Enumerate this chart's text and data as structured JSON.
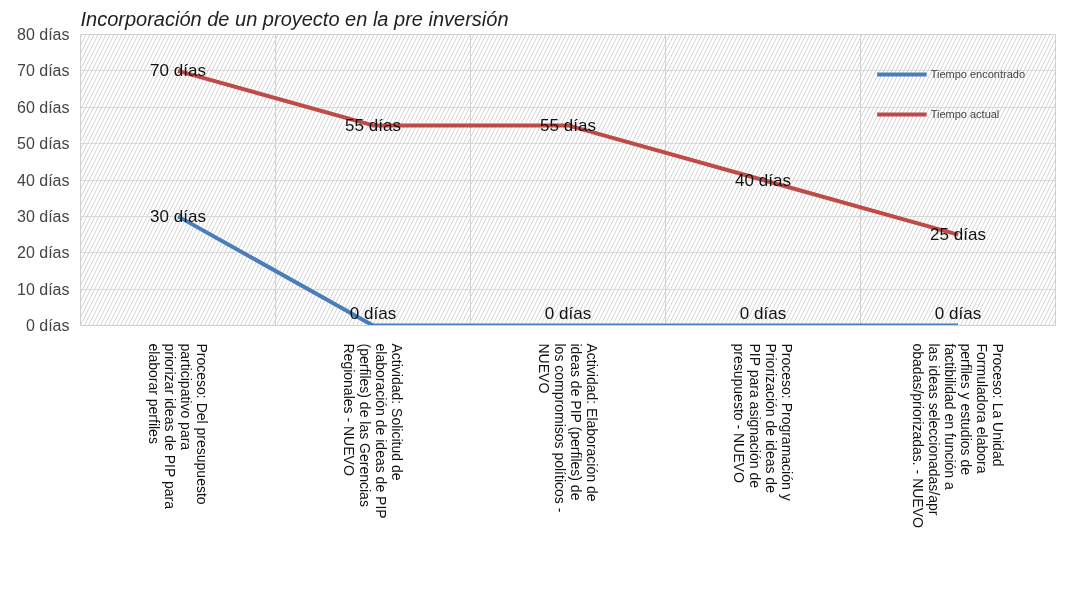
{
  "chart_data": {
    "type": "line",
    "title": "Incorporación de un proyecto en la pre inversión",
    "categories": [
      "Proceso: Del presupuesto participativo para priorizar ideas de PIP para elaborar perfiles",
      "Actividad:  Solicitud de elaboración de ideas de PIP (perfiles) de las Gerencias Regionales - NUEVO",
      "Actividad: Elaboración de ideas de PIP (perfiles) de los compromisos políticos - NUEVO",
      "Proceso: Programación y Priorización de ideas de PIP para asignación de presupuesto - NUEVO",
      "Proceso: La Unidad Formuladora elabora perfiles y estudios de factibilidad en función a las ideas seleccionadas/aprobadas/priorizadas. - NUEVO"
    ],
    "series": [
      {
        "name": "Tiempo encontrado",
        "color": "#4a7ebb",
        "values": [
          30,
          0,
          0,
          0,
          0
        ],
        "value_labels": [
          "30 días",
          "0 días",
          "0 días",
          "0 días",
          "0 días"
        ]
      },
      {
        "name": "Tiempo actual",
        "color": "#be4b48",
        "values": [
          70,
          55,
          55,
          40,
          25
        ],
        "value_labels": [
          "70 días",
          "55 días",
          "55 días",
          "40 días",
          "25 días"
        ]
      }
    ],
    "ylim": [
      0,
      80
    ],
    "yticks": [
      {
        "value": 0,
        "label": "0 días"
      },
      {
        "value": 10,
        "label": "10 días"
      },
      {
        "value": 20,
        "label": "20 días"
      },
      {
        "value": 30,
        "label": "30 días"
      },
      {
        "value": 40,
        "label": "40 días"
      },
      {
        "value": 50,
        "label": "50 días"
      },
      {
        "value": 60,
        "label": "60 días"
      },
      {
        "value": 70,
        "label": "70 días"
      },
      {
        "value": 80,
        "label": "80 días"
      }
    ],
    "grid": "y",
    "legend": "top right",
    "marker": "none",
    "line_style": "solid"
  }
}
